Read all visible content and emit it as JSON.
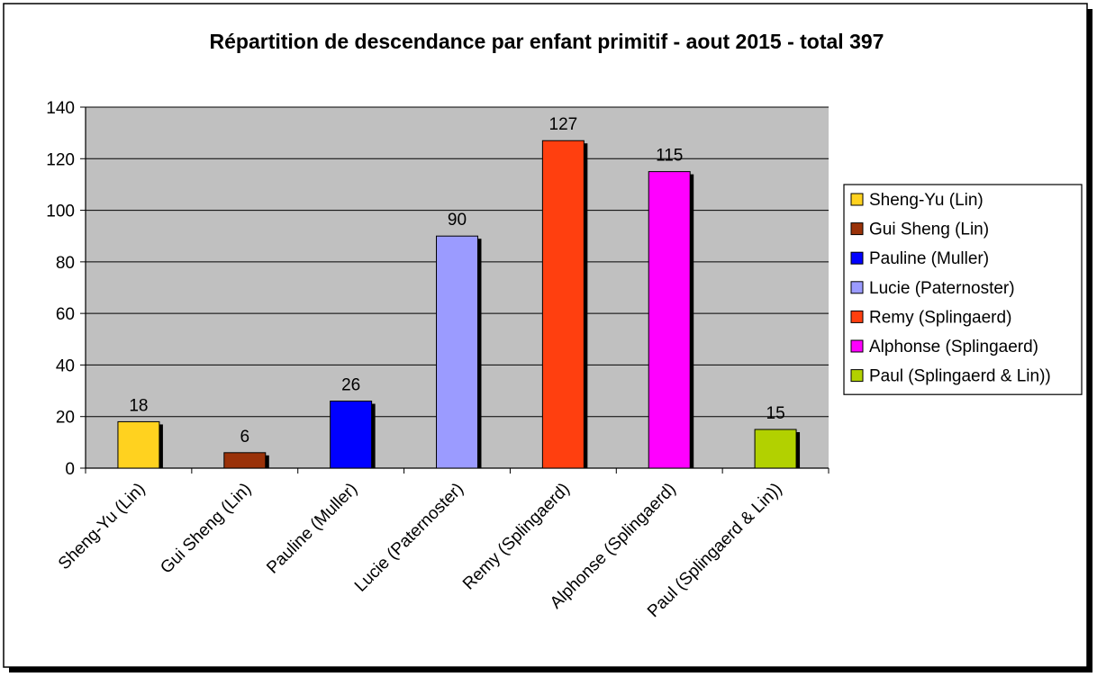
{
  "chart_data": {
    "type": "bar",
    "title": "Répartition de descendance par enfant primitif - aout 2015 - total 397",
    "categories": [
      "Sheng-Yu (Lin)",
      "Gui Sheng (Lin)",
      "Pauline (Muller)",
      "Lucie (Paternoster)",
      "Remy (Splingaerd)",
      "Alphonse (Splingaerd)",
      "Paul (Splingaerd & Lin))"
    ],
    "values": [
      18,
      6,
      26,
      90,
      127,
      115,
      15
    ],
    "data_labels": [
      "18",
      "6",
      "26",
      "90",
      "127",
      "115",
      "15"
    ],
    "colors": [
      "#FFD21F",
      "#9A3209",
      "#0000FF",
      "#9B9BFF",
      "#FF3F0F",
      "#FF00FF",
      "#B2D100"
    ],
    "xlabel": "",
    "ylabel": "",
    "ylim": [
      0,
      140
    ],
    "yticks": [
      0,
      20,
      40,
      60,
      80,
      100,
      120,
      140
    ],
    "ytick_labels": [
      "0",
      "20",
      "40",
      "60",
      "80",
      "100",
      "120",
      "140"
    ],
    "grid": true,
    "plot_background": "#C0C0C0",
    "legend": {
      "position": "right",
      "entries": [
        "Sheng-Yu (Lin)",
        "Gui Sheng (Lin)",
        "Pauline (Muller)",
        "Lucie (Paternoster)",
        "Remy (Splingaerd)",
        "Alphonse (Splingaerd)",
        "Paul (Splingaerd & Lin))"
      ]
    }
  }
}
